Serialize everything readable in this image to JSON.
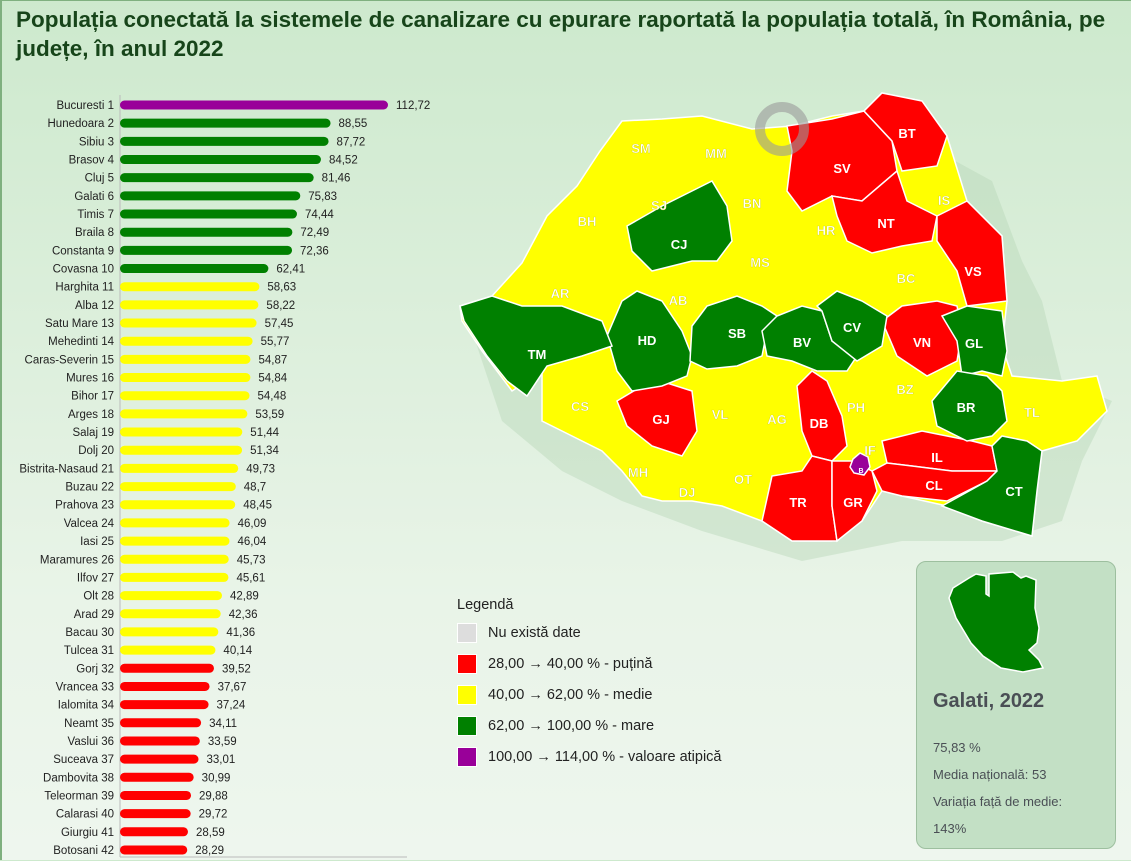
{
  "title": "Populația conectată la sistemele de canalizare cu epurare raportată la populația totală, în România, pe județe, în anul 2022",
  "chart_data": {
    "type": "bar",
    "orientation": "horizontal",
    "xlim": [
      0,
      114
    ],
    "categories": [
      "Bucuresti 1",
      "Hunedoara 2",
      "Sibiu 3",
      "Brasov 4",
      "Cluj 5",
      "Galati 6",
      "Timis 7",
      "Braila 8",
      "Constanta 9",
      "Covasna 10",
      "Harghita 11",
      "Alba 12",
      "Satu Mare 13",
      "Mehedinti 14",
      "Caras-Severin 15",
      "Mures 16",
      "Bihor 17",
      "Arges 18",
      "Salaj 19",
      "Dolj 20",
      "Bistrita-Nasaud 21",
      "Buzau 22",
      "Prahova 23",
      "Valcea 24",
      "Iasi 25",
      "Maramures 26",
      "Ilfov 27",
      "Olt 28",
      "Arad 29",
      "Bacau 30",
      "Tulcea 31",
      "Gorj 32",
      "Vrancea 33",
      "Ialomita 34",
      "Neamt 35",
      "Vaslui 36",
      "Suceava 37",
      "Dambovita 38",
      "Teleorman 39",
      "Calarasi 40",
      "Giurgiu 41",
      "Botosani 42"
    ],
    "values": [
      112.72,
      88.55,
      87.72,
      84.52,
      81.46,
      75.83,
      74.44,
      72.49,
      72.36,
      62.41,
      58.63,
      58.22,
      57.45,
      55.77,
      54.87,
      54.84,
      54.48,
      53.59,
      51.44,
      51.34,
      49.73,
      48.7,
      48.45,
      46.09,
      46.04,
      45.73,
      45.61,
      42.89,
      42.36,
      41.36,
      40.14,
      39.52,
      37.67,
      37.24,
      34.11,
      33.59,
      33.01,
      30.99,
      29.88,
      29.72,
      28.59,
      28.29
    ],
    "value_labels": [
      "112,72",
      "88,55",
      "87,72",
      "84,52",
      "81,46",
      "75,83",
      "74,44",
      "72,49",
      "72,36",
      "62,41",
      "58,63",
      "58,22",
      "57,45",
      "55,77",
      "54,87",
      "54,84",
      "54,48",
      "53,59",
      "51,44",
      "51,34",
      "49,73",
      "48,7",
      "48,45",
      "46,09",
      "46,04",
      "45,73",
      "45,61",
      "42,89",
      "42,36",
      "41,36",
      "40,14",
      "39,52",
      "37,67",
      "37,24",
      "34,11",
      "33,59",
      "33,01",
      "30,99",
      "29,88",
      "29,72",
      "28,59",
      "28,29"
    ]
  },
  "colors": {
    "none": "#dddddd",
    "low": "#ff0000",
    "medium": "#ffff00",
    "high": "#008000",
    "outlier": "#990099"
  },
  "legend": {
    "title": "Legendă",
    "items": [
      {
        "label": "Nu există date",
        "color": "#dddddd"
      },
      {
        "label": "28,00 → 40,00 % - puțină",
        "color": "#ff0000"
      },
      {
        "label": "40,00 → 62,00 % - medie",
        "color": "#ffff00"
      },
      {
        "label": "62,00 → 100,00 % - mare",
        "color": "#008000"
      },
      {
        "label": "100,00 → 114,00 % - valoare atipică",
        "color": "#990099"
      }
    ]
  },
  "map_labels": [
    "SM",
    "MM",
    "BT",
    "SV",
    "SJ",
    "BN",
    "IS",
    "BH",
    "CJ",
    "NT",
    "MS",
    "HR",
    "VS",
    "AR",
    "AB",
    "BC",
    "TM",
    "HD",
    "SB",
    "BV",
    "CV",
    "VN",
    "GL",
    "CS",
    "GJ",
    "VL",
    "AG",
    "DB",
    "PH",
    "BZ",
    "BR",
    "TL",
    "IF",
    "B",
    "IL",
    "MH",
    "DJ",
    "OT",
    "TR",
    "GR",
    "CL",
    "CT"
  ],
  "info": {
    "title": "Galati, 2022",
    "value": "75,83 %",
    "national": "Media națională: 53",
    "variation_label": "Variația față de medie:",
    "variation": "143%"
  }
}
